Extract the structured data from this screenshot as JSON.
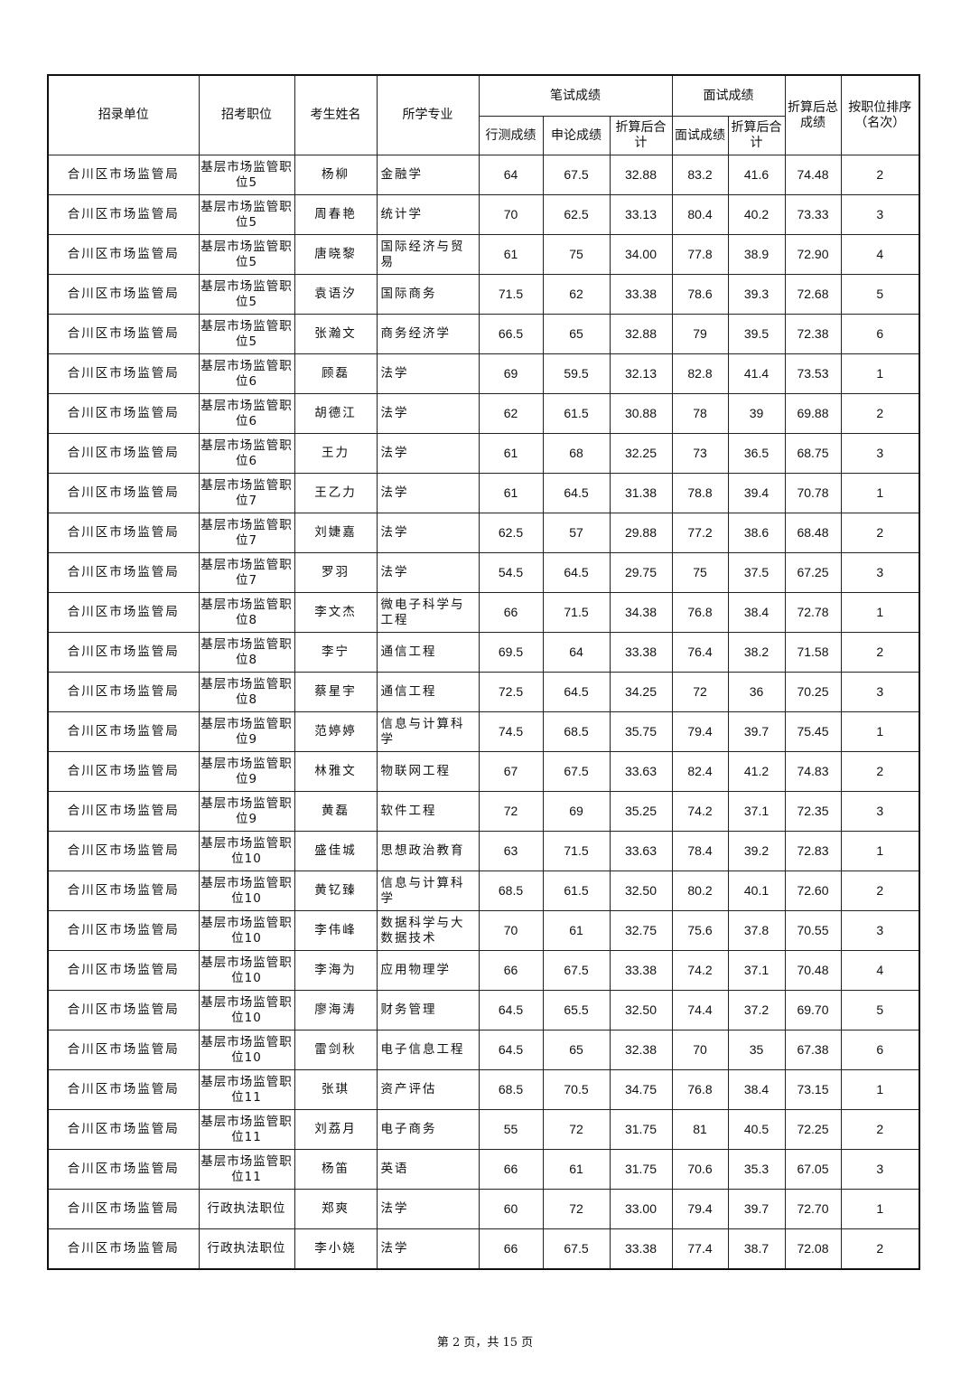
{
  "header": {
    "unit": "招录单位",
    "position": "招考职位",
    "name": "考生姓名",
    "major": "所学专业",
    "written": "笔试成绩",
    "interview": "面试成绩",
    "total": "折算后总成绩",
    "rank": "按职位排序（名次）",
    "xingce": "行测成绩",
    "shenlun": "申论成绩",
    "written_converted": "折算后合计",
    "interview_score": "面试成绩",
    "interview_converted": "折算后合计"
  },
  "rows": [
    [
      "合川区市场监管局",
      "基层市场监管职位5",
      "杨柳",
      "金融学",
      "64",
      "67.5",
      "32.88",
      "83.2",
      "41.6",
      "74.48",
      "2"
    ],
    [
      "合川区市场监管局",
      "基层市场监管职位5",
      "周春艳",
      "统计学",
      "70",
      "62.5",
      "33.13",
      "80.4",
      "40.2",
      "73.33",
      "3"
    ],
    [
      "合川区市场监管局",
      "基层市场监管职位5",
      "唐晓黎",
      "国际经济与贸易",
      "61",
      "75",
      "34.00",
      "77.8",
      "38.9",
      "72.90",
      "4"
    ],
    [
      "合川区市场监管局",
      "基层市场监管职位5",
      "袁语汐",
      "国际商务",
      "71.5",
      "62",
      "33.38",
      "78.6",
      "39.3",
      "72.68",
      "5"
    ],
    [
      "合川区市场监管局",
      "基层市场监管职位5",
      "张瀚文",
      "商务经济学",
      "66.5",
      "65",
      "32.88",
      "79",
      "39.5",
      "72.38",
      "6"
    ],
    [
      "合川区市场监管局",
      "基层市场监管职位6",
      "顾磊",
      "法学",
      "69",
      "59.5",
      "32.13",
      "82.8",
      "41.4",
      "73.53",
      "1"
    ],
    [
      "合川区市场监管局",
      "基层市场监管职位6",
      "胡德江",
      "法学",
      "62",
      "61.5",
      "30.88",
      "78",
      "39",
      "69.88",
      "2"
    ],
    [
      "合川区市场监管局",
      "基层市场监管职位6",
      "王力",
      "法学",
      "61",
      "68",
      "32.25",
      "73",
      "36.5",
      "68.75",
      "3"
    ],
    [
      "合川区市场监管局",
      "基层市场监管职位7",
      "王乙力",
      "法学",
      "61",
      "64.5",
      "31.38",
      "78.8",
      "39.4",
      "70.78",
      "1"
    ],
    [
      "合川区市场监管局",
      "基层市场监管职位7",
      "刘婕嘉",
      "法学",
      "62.5",
      "57",
      "29.88",
      "77.2",
      "38.6",
      "68.48",
      "2"
    ],
    [
      "合川区市场监管局",
      "基层市场监管职位7",
      "罗羽",
      "法学",
      "54.5",
      "64.5",
      "29.75",
      "75",
      "37.5",
      "67.25",
      "3"
    ],
    [
      "合川区市场监管局",
      "基层市场监管职位8",
      "李文杰",
      "微电子科学与工程",
      "66",
      "71.5",
      "34.38",
      "76.8",
      "38.4",
      "72.78",
      "1"
    ],
    [
      "合川区市场监管局",
      "基层市场监管职位8",
      "李宁",
      "通信工程",
      "69.5",
      "64",
      "33.38",
      "76.4",
      "38.2",
      "71.58",
      "2"
    ],
    [
      "合川区市场监管局",
      "基层市场监管职位8",
      "蔡星宇",
      "通信工程",
      "72.5",
      "64.5",
      "34.25",
      "72",
      "36",
      "70.25",
      "3"
    ],
    [
      "合川区市场监管局",
      "基层市场监管职位9",
      "范婷婷",
      "信息与计算科学",
      "74.5",
      "68.5",
      "35.75",
      "79.4",
      "39.7",
      "75.45",
      "1"
    ],
    [
      "合川区市场监管局",
      "基层市场监管职位9",
      "林雅文",
      "物联网工程",
      "67",
      "67.5",
      "33.63",
      "82.4",
      "41.2",
      "74.83",
      "2"
    ],
    [
      "合川区市场监管局",
      "基层市场监管职位9",
      "黄磊",
      "软件工程",
      "72",
      "69",
      "35.25",
      "74.2",
      "37.1",
      "72.35",
      "3"
    ],
    [
      "合川区市场监管局",
      "基层市场监管职位10",
      "盛佳城",
      "思想政治教育",
      "63",
      "71.5",
      "33.63",
      "78.4",
      "39.2",
      "72.83",
      "1"
    ],
    [
      "合川区市场监管局",
      "基层市场监管职位10",
      "黄钇臻",
      "信息与计算科学",
      "68.5",
      "61.5",
      "32.50",
      "80.2",
      "40.1",
      "72.60",
      "2"
    ],
    [
      "合川区市场监管局",
      "基层市场监管职位10",
      "李伟峰",
      "数据科学与大数据技术",
      "70",
      "61",
      "32.75",
      "75.6",
      "37.8",
      "70.55",
      "3"
    ],
    [
      "合川区市场监管局",
      "基层市场监管职位10",
      "李海为",
      "应用物理学",
      "66",
      "67.5",
      "33.38",
      "74.2",
      "37.1",
      "70.48",
      "4"
    ],
    [
      "合川区市场监管局",
      "基层市场监管职位10",
      "廖海涛",
      "财务管理",
      "64.5",
      "65.5",
      "32.50",
      "74.4",
      "37.2",
      "69.70",
      "5"
    ],
    [
      "合川区市场监管局",
      "基层市场监管职位10",
      "雷剑秋",
      "电子信息工程",
      "64.5",
      "65",
      "32.38",
      "70",
      "35",
      "67.38",
      "6"
    ],
    [
      "合川区市场监管局",
      "基层市场监管职位11",
      "张琪",
      "资产评估",
      "68.5",
      "70.5",
      "34.75",
      "76.8",
      "38.4",
      "73.15",
      "1"
    ],
    [
      "合川区市场监管局",
      "基层市场监管职位11",
      "刘荔月",
      "电子商务",
      "55",
      "72",
      "31.75",
      "81",
      "40.5",
      "72.25",
      "2"
    ],
    [
      "合川区市场监管局",
      "基层市场监管职位11",
      "杨笛",
      "英语",
      "66",
      "61",
      "31.75",
      "70.6",
      "35.3",
      "67.05",
      "3"
    ],
    [
      "合川区市场监管局",
      "行政执法职位",
      "郑爽",
      "法学",
      "60",
      "72",
      "33.00",
      "79.4",
      "39.7",
      "72.70",
      "1"
    ],
    [
      "合川区市场监管局",
      "行政执法职位",
      "李小娆",
      "法学",
      "66",
      "67.5",
      "33.38",
      "77.4",
      "38.7",
      "72.08",
      "2"
    ]
  ],
  "footer": "第 2 页，共 15 页"
}
